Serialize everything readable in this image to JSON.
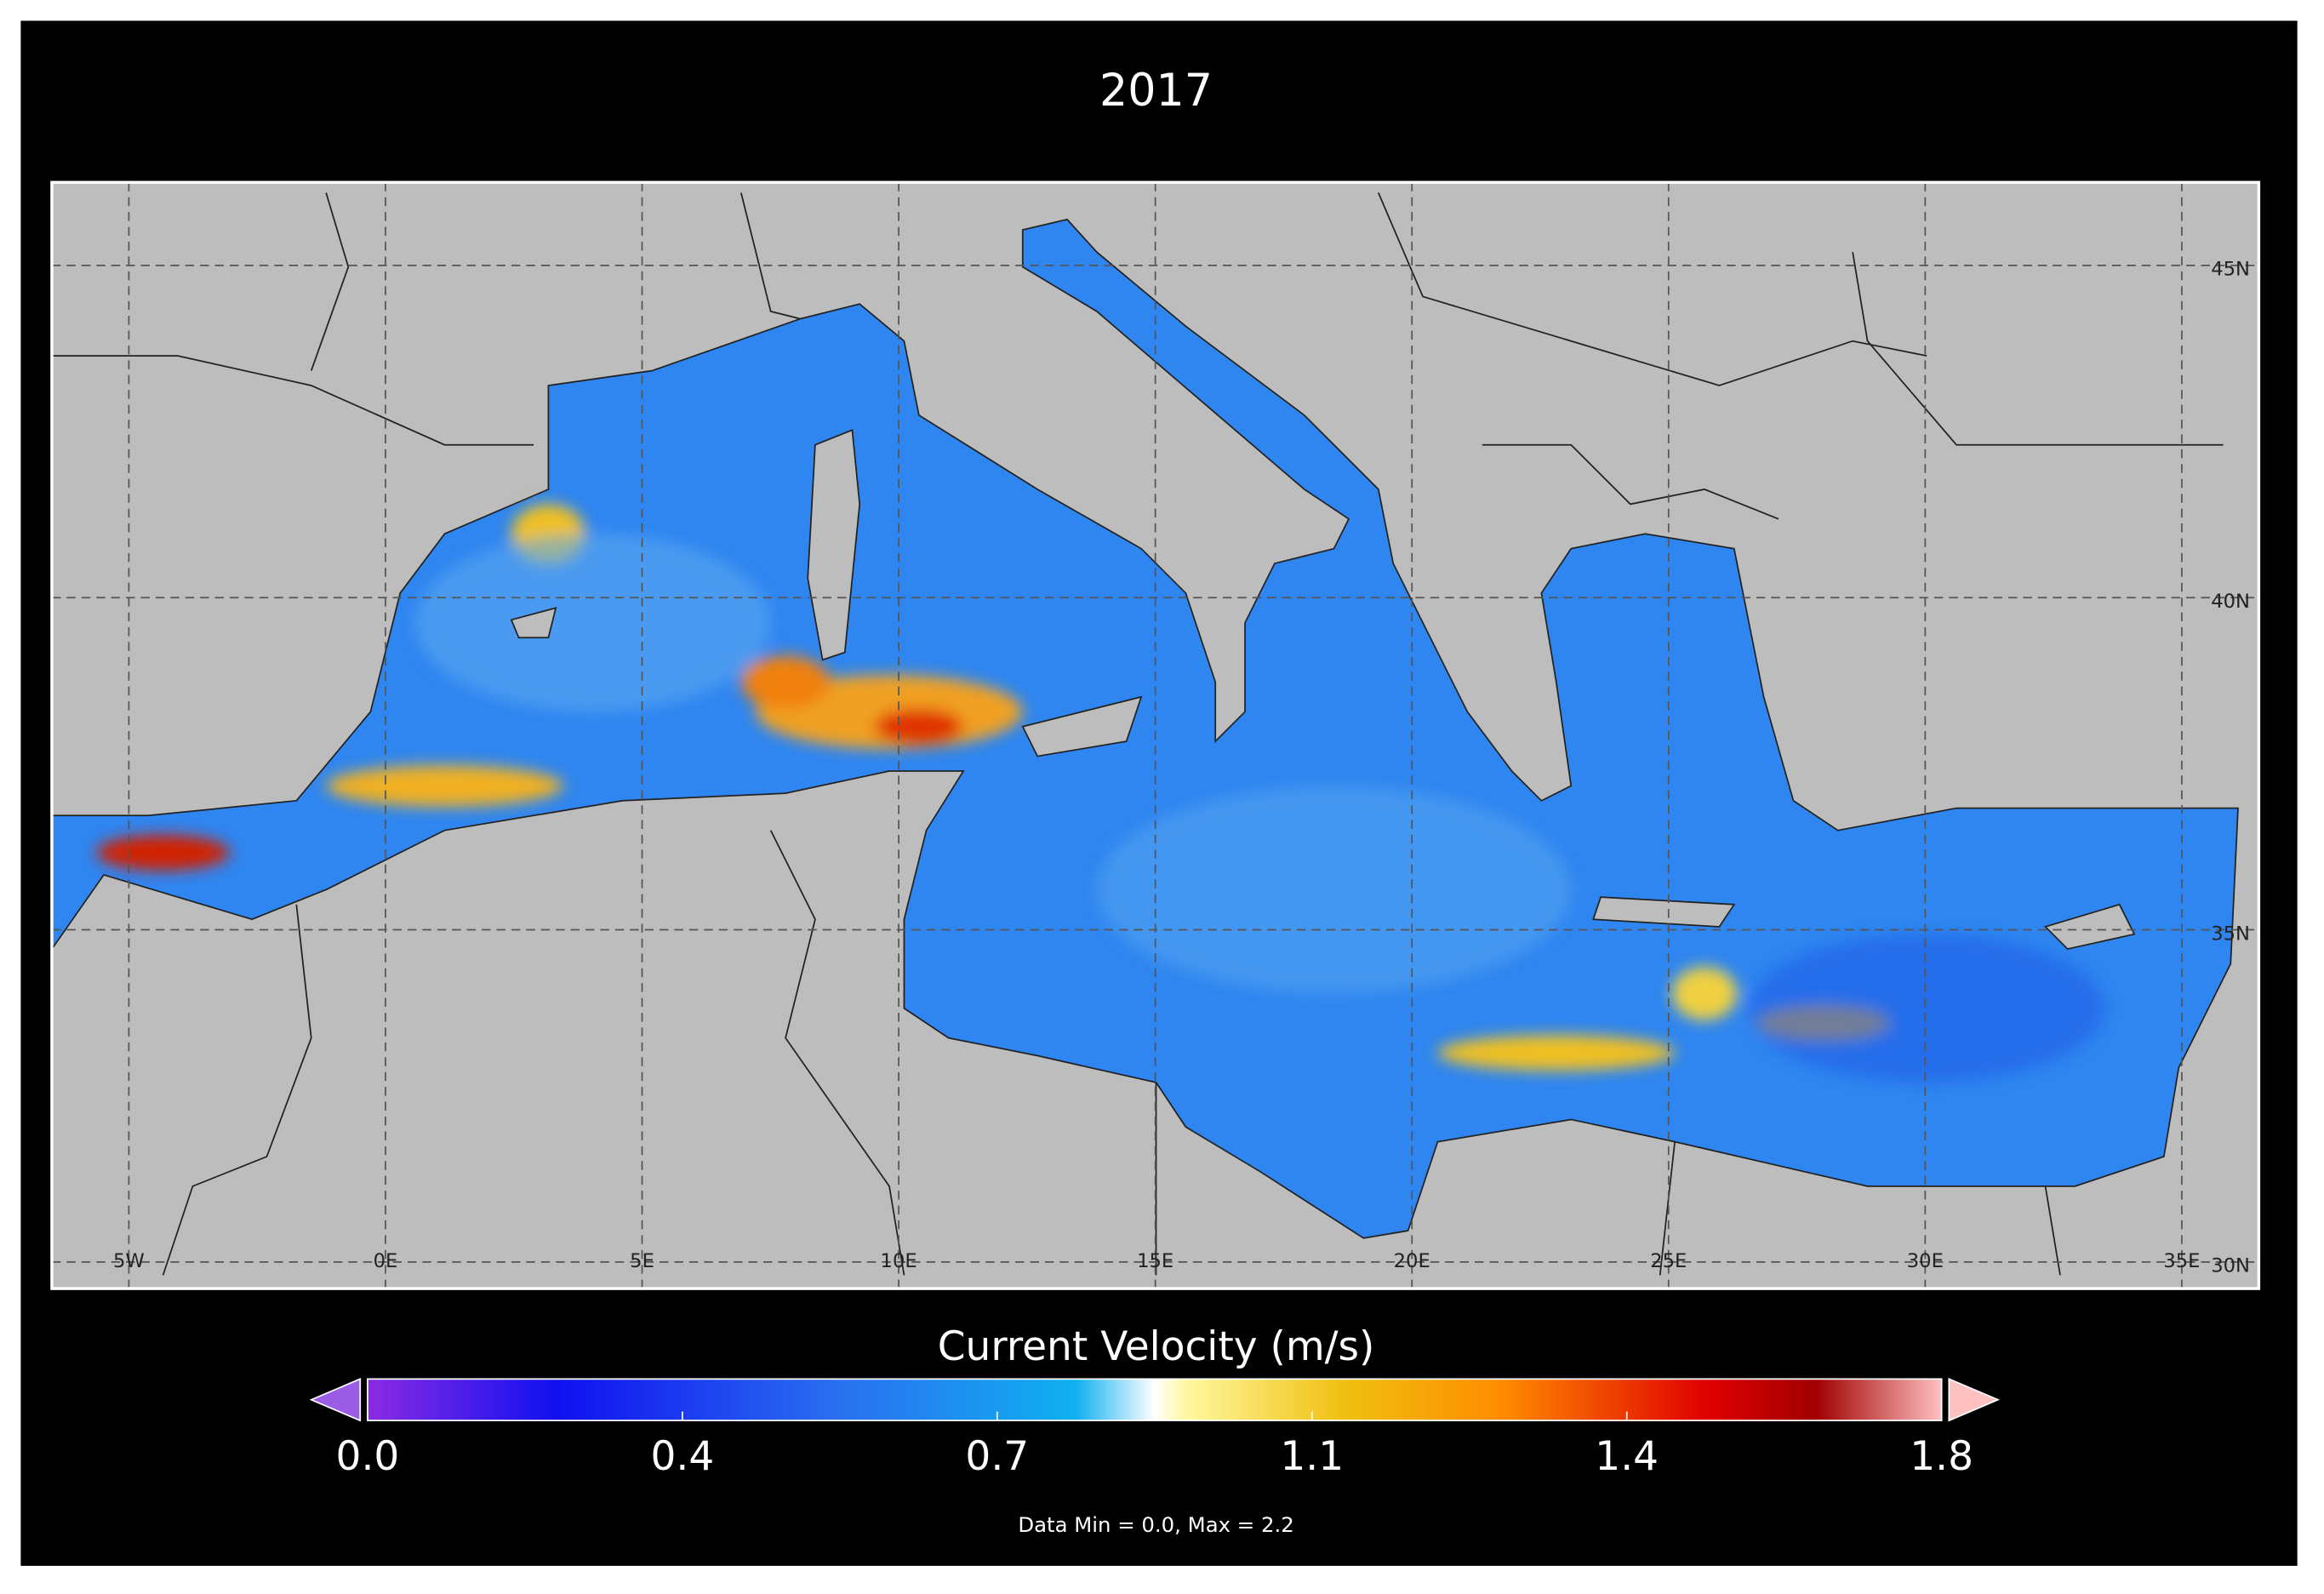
{
  "title": "2017",
  "map": {
    "xlim": [
      -6.5,
      36.5
    ],
    "ylim": [
      29.6,
      46.25
    ],
    "lon_ticks": [
      {
        "value": -5,
        "label": "5W"
      },
      {
        "value": 0,
        "label": "0E"
      },
      {
        "value": 5,
        "label": "5E"
      },
      {
        "value": 10,
        "label": "10E"
      },
      {
        "value": 15,
        "label": "15E"
      },
      {
        "value": 20,
        "label": "20E"
      },
      {
        "value": 25,
        "label": "25E"
      },
      {
        "value": 30,
        "label": "30E"
      },
      {
        "value": 35,
        "label": "35E"
      }
    ],
    "lat_ticks": [
      {
        "value": 45,
        "label": "45N"
      },
      {
        "value": 40,
        "label": "40N"
      },
      {
        "value": 35,
        "label": "35N"
      },
      {
        "value": 30,
        "label": "30N"
      }
    ]
  },
  "colorbar": {
    "label": "Current Velocity (m/s)",
    "range": [
      0,
      1.8
    ],
    "ticks": [
      {
        "value": 0,
        "label": "0.0"
      },
      {
        "value": 0.36,
        "label": "0.4"
      },
      {
        "value": 0.72,
        "label": "0.7"
      },
      {
        "value": 1.08,
        "label": "1.1"
      },
      {
        "value": 1.44,
        "label": "1.4"
      },
      1.8
    ]
  },
  "note": "Data Min = 0.0, Max = 2.2"
}
